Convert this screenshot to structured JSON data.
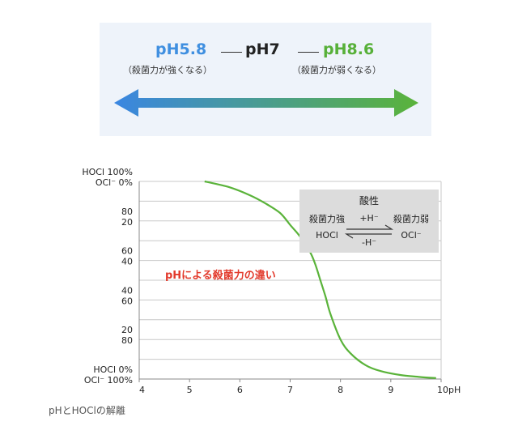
{
  "banner": {
    "ph_low": "pH5.8",
    "ph_mid": "pH7",
    "ph_high": "pH8.6",
    "note_low": "（殺菌力が強くなる）",
    "note_high": "（殺菌力が弱くなる）",
    "gradient_colors": [
      "#3a86e2",
      "#5ab33a"
    ]
  },
  "chart_data": {
    "type": "line",
    "title": "",
    "xlabel": "",
    "ylabel": "",
    "xlim": [
      4,
      10
    ],
    "ylim": [
      0,
      100
    ],
    "x_ticks": [
      "4",
      "5",
      "6",
      "7",
      "8",
      "9",
      "10pH"
    ],
    "y_tick_labels": [
      {
        "value": 100,
        "lines": [
          "HOCl 100%",
          "OCl⁻ 0%"
        ]
      },
      {
        "value": 80,
        "lines": [
          "80",
          "20"
        ]
      },
      {
        "value": 60,
        "lines": [
          "60",
          "40"
        ]
      },
      {
        "value": 40,
        "lines": [
          "40",
          "60"
        ]
      },
      {
        "value": 20,
        "lines": [
          "20",
          "80"
        ]
      },
      {
        "value": 0,
        "lines": [
          "HOCl 0%",
          "OCl⁻ 100%"
        ]
      }
    ],
    "grid": true,
    "line_color": "#5ab33a",
    "series": [
      {
        "x": [
          5.3,
          5.8,
          6.2,
          6.5,
          6.8,
          7.0,
          7.2,
          7.4,
          7.5,
          7.6,
          7.7,
          7.8,
          8.0,
          8.2,
          8.5,
          8.8,
          9.2,
          9.6,
          9.9
        ],
        "values": [
          100,
          97,
          93,
          89,
          84,
          78,
          72,
          64,
          58,
          50,
          42,
          33,
          20,
          13,
          7,
          4,
          2,
          1,
          0.5
        ]
      }
    ],
    "annotation_red": "pHによる殺菌力の違い",
    "annotation_red_color": "#e23a2c",
    "equilibrium": {
      "title": "酸性",
      "left_top": "殺菌力強",
      "left_bottom": "HOCl",
      "right_top": "殺菌力弱",
      "right_bottom": "OCl⁻",
      "arrow_top": "+H⁻",
      "arrow_bottom": "-H⁻"
    }
  },
  "caption": "pHとHOClの解離"
}
